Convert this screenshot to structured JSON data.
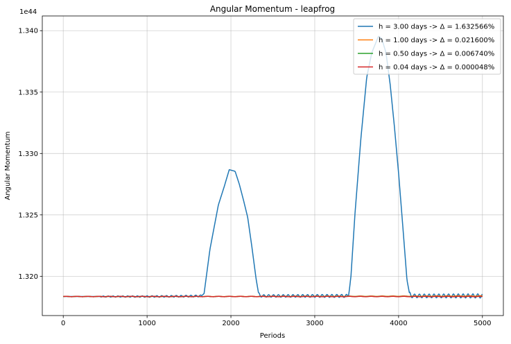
{
  "chart_data": {
    "type": "line",
    "title": "Angular Momentum - leapfrog",
    "xlabel": "Periods",
    "ylabel": "Angular Momentum",
    "y_offset_label": "1e44",
    "xlim": [
      -250,
      5250
    ],
    "ylim": [
      1.3168,
      1.3412
    ],
    "xticks": [
      0,
      1000,
      2000,
      3000,
      4000,
      5000
    ],
    "yticks": [
      1.32,
      1.325,
      1.33,
      1.335,
      1.34
    ],
    "xtick_labels": [
      "0",
      "1000",
      "2000",
      "3000",
      "4000",
      "5000"
    ],
    "ytick_labels": [
      "1.320",
      "1.325",
      "1.330",
      "1.335",
      "1.340"
    ],
    "grid": true,
    "legend_position": "upper-right",
    "series": [
      {
        "name": "h = 3.00 days ->  Δ = 1.632566%",
        "color": "#1f77b4",
        "x": [
          0,
          500,
          1000,
          1500,
          1650,
          1680,
          1750,
          1850,
          1920,
          1980,
          2050,
          2100,
          2150,
          2200,
          2250,
          2300,
          2330,
          2350,
          2500,
          3000,
          3400,
          3430,
          3480,
          3550,
          3620,
          3680,
          3760,
          3800,
          3850,
          3900,
          3950,
          4000,
          4050,
          4100,
          4130,
          4150,
          4500,
          5000
        ],
        "y": [
          1.31835,
          1.31835,
          1.31835,
          1.31838,
          1.3184,
          1.3186,
          1.3222,
          1.3258,
          1.3273,
          1.32868,
          1.32855,
          1.3275,
          1.3262,
          1.3248,
          1.3224,
          1.3198,
          1.3186,
          1.3184,
          1.3184,
          1.3184,
          1.3184,
          1.3198,
          1.3251,
          1.3312,
          1.3362,
          1.3382,
          1.33955,
          1.33935,
          1.3382,
          1.3356,
          1.3322,
          1.3284,
          1.3241,
          1.3197,
          1.3186,
          1.3184,
          1.3184,
          1.3184
        ],
        "oscillation_segments": [
          [
            450,
            1650
          ],
          [
            2330,
            3430
          ],
          [
            4130,
            5000
          ]
        ]
      },
      {
        "name": "h = 1.00 days ->  Δ = 0.021600%",
        "color": "#ff7f0e",
        "x": [
          0,
          1000,
          2000,
          3000,
          4000,
          5000
        ],
        "y": [
          1.31835,
          1.31835,
          1.31836,
          1.31837,
          1.31838,
          1.3184
        ]
      },
      {
        "name": "h = 0.50 days ->  Δ = 0.006740%",
        "color": "#2ca02c",
        "x": [
          0,
          1000,
          2000,
          3000,
          4000,
          5000
        ],
        "y": [
          1.31835,
          1.31835,
          1.31835,
          1.31836,
          1.31836,
          1.31836
        ]
      },
      {
        "name": "h = 0.04 days ->  Δ = 0.000048%",
        "color": "#d62728",
        "x": [
          0,
          1000,
          2000,
          3000,
          4000,
          5000
        ],
        "y": [
          1.31835,
          1.31835,
          1.31835,
          1.31835,
          1.31835,
          1.31835
        ]
      }
    ]
  }
}
